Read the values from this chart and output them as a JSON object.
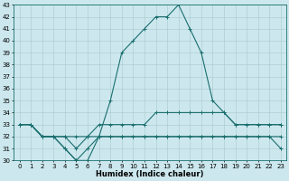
{
  "xlabel": "Humidex (Indice chaleur)",
  "background_color": "#cce8ee",
  "line_color": "#1a6e6e",
  "x": [
    0,
    1,
    2,
    3,
    4,
    5,
    6,
    7,
    8,
    9,
    10,
    11,
    12,
    13,
    14,
    15,
    16,
    17,
    18,
    19,
    20,
    21,
    22,
    23
  ],
  "series": [
    [
      33,
      33,
      32,
      32,
      31,
      30,
      31,
      32,
      35,
      39,
      40,
      41,
      42,
      42,
      43,
      41,
      39,
      35,
      34,
      33,
      33,
      33,
      33,
      33
    ],
    [
      33,
      33,
      32,
      32,
      32,
      32,
      32,
      33,
      33,
      33,
      33,
      33,
      34,
      34,
      34,
      34,
      34,
      34,
      34,
      33,
      33,
      33,
      33,
      33
    ],
    [
      33,
      33,
      32,
      32,
      32,
      31,
      32,
      32,
      32,
      32,
      32,
      32,
      32,
      32,
      32,
      32,
      32,
      32,
      32,
      32,
      32,
      32,
      32,
      32
    ],
    [
      33,
      33,
      32,
      32,
      31,
      30,
      30,
      32,
      32,
      32,
      32,
      32,
      32,
      32,
      32,
      32,
      32,
      32,
      32,
      32,
      32,
      32,
      32,
      31
    ]
  ],
  "ylim": [
    30,
    43
  ],
  "yticks": [
    30,
    31,
    32,
    33,
    34,
    35,
    36,
    37,
    38,
    39,
    40,
    41,
    42,
    43
  ],
  "xticks": [
    0,
    1,
    2,
    3,
    4,
    5,
    6,
    7,
    8,
    9,
    10,
    11,
    12,
    13,
    14,
    15,
    16,
    17,
    18,
    19,
    20,
    21,
    22,
    23
  ],
  "marker": "+",
  "markersize": 3,
  "linewidth": 0.8,
  "grid_color": "#a8c8cc",
  "tick_fontsize": 5,
  "label_fontsize": 6,
  "label_fontweight": "bold"
}
